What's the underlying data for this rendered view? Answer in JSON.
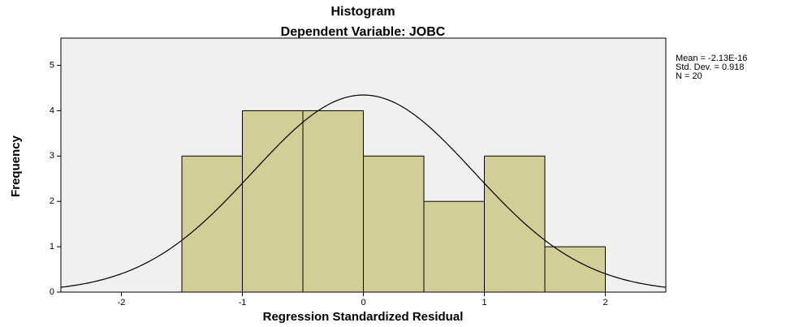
{
  "chart_data": {
    "type": "histogram",
    "title": "Histogram",
    "subtitle": "Dependent Variable: JOBC",
    "xlabel": "Regression Standardized Residual",
    "ylabel": "Frequency",
    "bins": [
      -1.5,
      -1,
      -0.5,
      0,
      0.5,
      1,
      1.5,
      2
    ],
    "values": [
      3,
      4,
      4,
      3,
      2,
      3,
      1
    ],
    "color": "#d3ce97",
    "xlim": [
      -2.5,
      2.5
    ],
    "xticks": [
      -2,
      -1,
      0,
      1,
      2
    ],
    "ylim": [
      0,
      5.6
    ],
    "yticks": [
      0,
      1,
      2,
      3,
      4,
      5
    ],
    "stats": {
      "mean": {
        "value": -2.13e-16,
        "label": "Mean = -2.13E-16"
      },
      "sd": {
        "value": 0.918,
        "label": "Std. Dev. = 0.918"
      },
      "n": {
        "value": 20,
        "label": "N = 20"
      }
    }
  }
}
